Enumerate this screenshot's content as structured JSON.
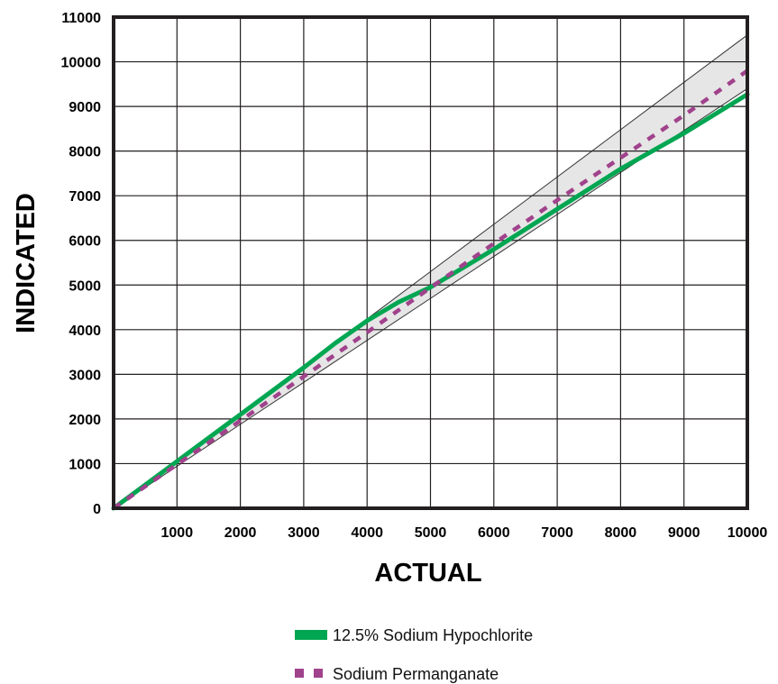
{
  "chart_data": {
    "type": "line",
    "xlabel": "ACTUAL",
    "ylabel": "INDICATED",
    "xlim": [
      0,
      10000
    ],
    "ylim": [
      0,
      11000
    ],
    "x_ticks": [
      "1000",
      "2000",
      "3000",
      "4000",
      "5000",
      "6000",
      "7000",
      "8000",
      "9000",
      "10000"
    ],
    "y_ticks": [
      "0",
      "1000",
      "2000",
      "3000",
      "4000",
      "5000",
      "6000",
      "7000",
      "8000",
      "9000",
      "10000",
      "11000"
    ],
    "grid": true,
    "legend_position": "bottom",
    "tolerance_band": {
      "x": [
        0,
        1000,
        2000,
        3000,
        4000,
        5000,
        6000,
        7000,
        8000,
        9000,
        10000
      ],
      "upper": [
        0,
        1060,
        2120,
        3180,
        4240,
        5300,
        6360,
        7420,
        8480,
        9540,
        10600
      ],
      "lower": [
        0,
        940,
        1880,
        2820,
        3760,
        4700,
        5640,
        6580,
        7520,
        8460,
        9400
      ],
      "fill": "#e6e6e6",
      "stroke": "#333333"
    },
    "series": [
      {
        "name": "12.5% Sodium Hypochlorite",
        "color": "#00a651",
        "style": "solid",
        "x": [
          0,
          1000,
          2000,
          3000,
          3500,
          4000,
          4500,
          5000,
          6000,
          7000,
          8000,
          9000,
          10000
        ],
        "y": [
          0,
          1050,
          2100,
          3150,
          3700,
          4200,
          4620,
          4950,
          5800,
          6700,
          7600,
          8400,
          9270
        ]
      },
      {
        "name": "Sodium Permanganate",
        "color": "#a0428c",
        "style": "dashed",
        "x": [
          0,
          1000,
          2000,
          3000,
          4000,
          5000,
          6000,
          7000,
          8000,
          9000,
          10000
        ],
        "y": [
          0,
          980,
          1960,
          2950,
          3940,
          4940,
          5930,
          6900,
          7850,
          8800,
          9800
        ]
      }
    ]
  }
}
